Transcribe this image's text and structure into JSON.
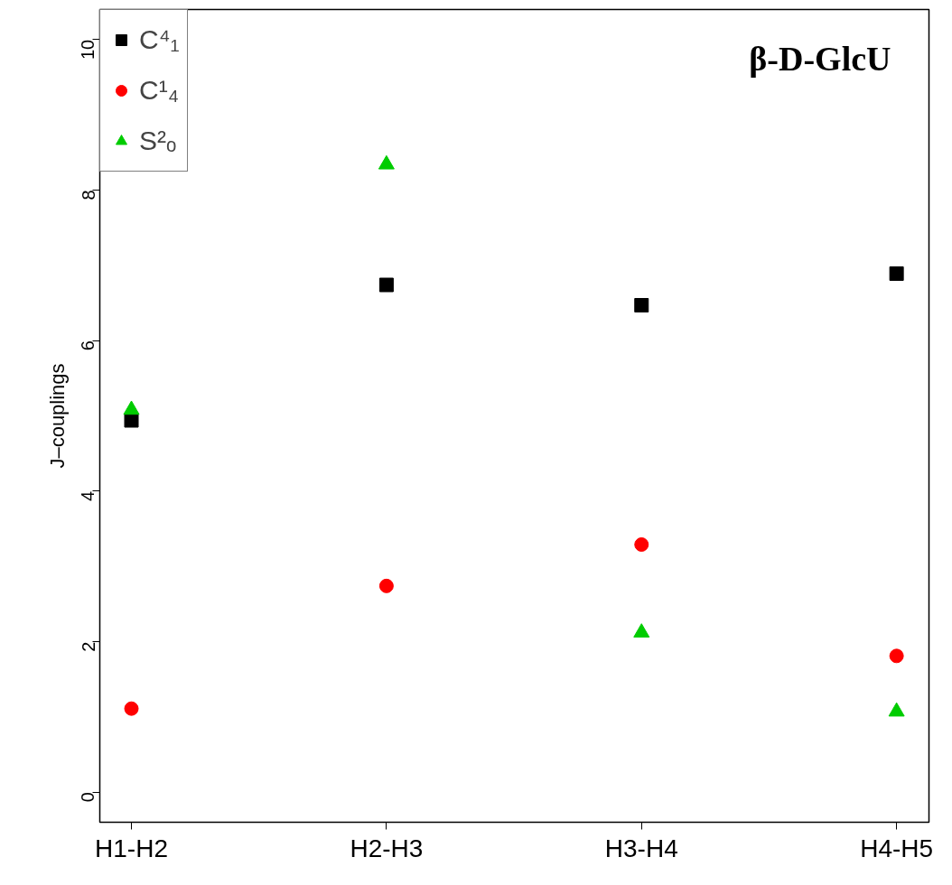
{
  "chart_data": {
    "type": "scatter",
    "title": "β-D-GlcU",
    "ylabel": "J–couplings",
    "categories": [
      "H1-H2",
      "H2-H3",
      "H3-H4",
      "H4-H5"
    ],
    "series": [
      {
        "name": "C⁴₁",
        "color": "#000000",
        "marker": "square",
        "values": [
          4.94,
          6.74,
          6.47,
          6.89
        ]
      },
      {
        "name": "C¹₄",
        "color": "#ff0000",
        "marker": "circle",
        "values": [
          1.11,
          2.74,
          3.29,
          1.81
        ]
      },
      {
        "name": "S²ₒ",
        "color": "#00cc00",
        "marker": "triangle",
        "values": [
          5.08,
          8.34,
          2.12,
          1.07
        ]
      }
    ],
    "ylim": [
      -0.4,
      10.4
    ],
    "yticks": [
      0,
      2,
      4,
      6,
      8,
      10
    ],
    "grid": false,
    "legend": "top left"
  }
}
